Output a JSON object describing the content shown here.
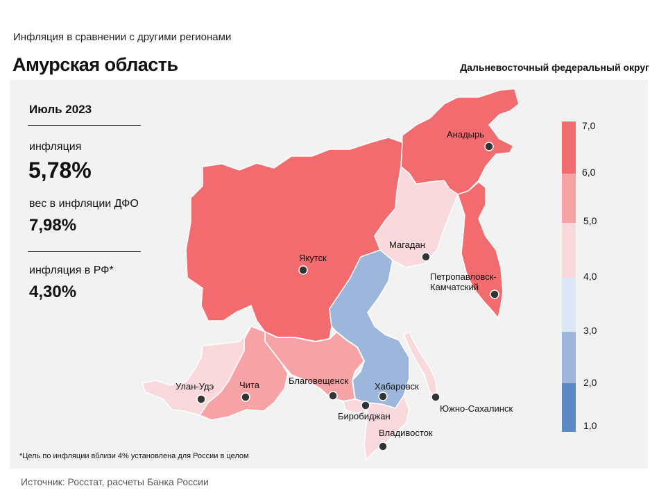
{
  "header": {
    "subtitle": "Инфляция  в сравнении  с другими  регионами",
    "title": "Амурская область",
    "district": "Дальневосточный федеральный округ"
  },
  "stats": {
    "period": "Июль 2023",
    "inflation_label": "инфляция",
    "inflation_value": "5,78%",
    "weight_label": "вес в инфляции  ДФО",
    "weight_value": "7,98%",
    "rf_label": "инфляция  в РФ*",
    "rf_value": "4,30%"
  },
  "footnote": "*Цель по инфляции вблизи 4% установлена для России в целом",
  "source": "Источник: Росстат, расчеты  Банка  России",
  "legend": {
    "ticks": [
      "7,0",
      "6,0",
      "5,0",
      "4,0",
      "3,0",
      "2,0",
      "1,0"
    ],
    "colors": [
      "#f26b6e",
      "#f7a3a6",
      "#f9d9dc",
      "#dde6f4",
      "#9db6dc",
      "#5b87c5"
    ]
  },
  "cities": [
    {
      "name": "Анадырь"
    },
    {
      "name": "Магадан"
    },
    {
      "name": "Якутск"
    },
    {
      "name": "Петропавловск-"
    },
    {
      "name": "Камчатский"
    },
    {
      "name": "Улан-Удэ"
    },
    {
      "name": "Чита"
    },
    {
      "name": "Благовещенск"
    },
    {
      "name": "Хабаровск"
    },
    {
      "name": "Биробиджан"
    },
    {
      "name": "Южно-Сахалинск"
    },
    {
      "name": "Владивосток"
    }
  ],
  "region_colors": {
    "high": "#f26b6e",
    "mid_high": "#f7a3a6",
    "mid": "#f9d9dc",
    "low": "#9db6dc"
  }
}
